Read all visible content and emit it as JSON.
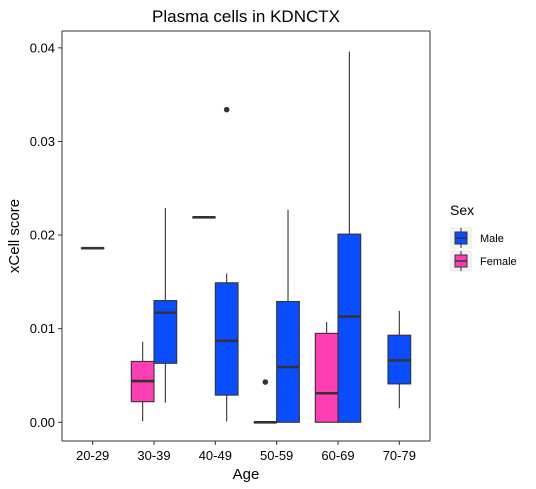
{
  "chart_data": {
    "type": "boxplot",
    "title": "Plasma cells in KDNCTX",
    "xlabel": "Age",
    "ylabel": "xCell score",
    "categories": [
      "20-29",
      "30-39",
      "40-49",
      "50-59",
      "60-69",
      "70-79"
    ],
    "ylim": [
      -0.002,
      0.0418
    ],
    "yticks": [
      0.0,
      0.01,
      0.02,
      0.03,
      0.04
    ],
    "ytick_labels": [
      "0.00",
      "0.01",
      "0.02",
      "0.03",
      "0.04"
    ],
    "legend": {
      "title": "Sex",
      "position": "right",
      "entries": [
        "Male",
        "Female"
      ]
    },
    "series": [
      {
        "name": "Male",
        "color": "#0a4dff",
        "boxes": [
          {
            "category": "20-29",
            "min": 0.0186,
            "q1": 0.0186,
            "median": 0.0186,
            "q3": 0.0186,
            "max": 0.0186,
            "outliers": []
          },
          {
            "category": "30-39",
            "min": 0.0021,
            "q1": 0.0063,
            "median": 0.0117,
            "q3": 0.013,
            "max": 0.0229,
            "outliers": []
          },
          {
            "category": "40-49",
            "min": 0.0001,
            "q1": 0.0029,
            "median": 0.0087,
            "q3": 0.0149,
            "max": 0.0159,
            "outliers": [
              0.0334
            ]
          },
          {
            "category": "50-59",
            "min": 0.0,
            "q1": 0.0,
            "median": 0.0059,
            "q3": 0.0129,
            "max": 0.0227,
            "outliers": []
          },
          {
            "category": "60-69",
            "min": 0.0,
            "q1": 0.0,
            "median": 0.0113,
            "q3": 0.0201,
            "max": 0.0396,
            "outliers": []
          },
          {
            "category": "70-79",
            "min": 0.0015,
            "q1": 0.0041,
            "median": 0.0066,
            "q3": 0.0093,
            "max": 0.0119,
            "outliers": []
          }
        ]
      },
      {
        "name": "Female",
        "color": "#ff3eb5",
        "boxes": [
          {
            "category": "30-39",
            "min": 0.0001,
            "q1": 0.0022,
            "median": 0.0044,
            "q3": 0.0065,
            "max": 0.0086,
            "outliers": []
          },
          {
            "category": "40-49",
            "min": 0.0219,
            "q1": 0.0219,
            "median": 0.0219,
            "q3": 0.0219,
            "max": 0.0219,
            "outliers": []
          },
          {
            "category": "50-59",
            "min": 0.0,
            "q1": 0.0,
            "median": 0.0,
            "q3": 0.0,
            "max": 0.0,
            "outliers": [
              0.0043
            ]
          },
          {
            "category": "60-69",
            "min": 0.0,
            "q1": 0.0,
            "median": 0.0031,
            "q3": 0.0095,
            "max": 0.0107,
            "outliers": []
          }
        ]
      }
    ]
  }
}
